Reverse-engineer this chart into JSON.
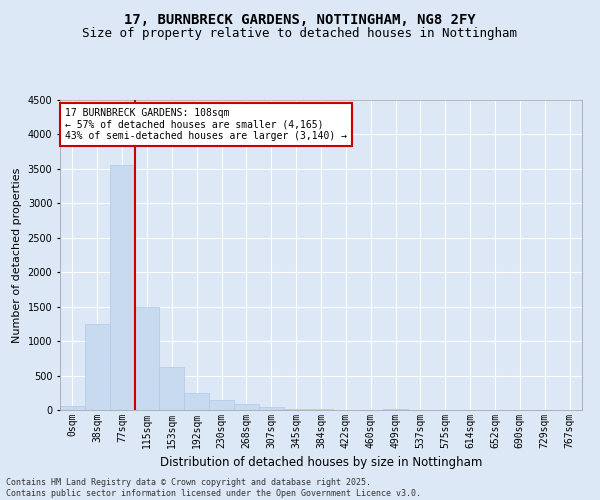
{
  "title1": "17, BURNBRECK GARDENS, NOTTINGHAM, NG8 2FY",
  "title2": "Size of property relative to detached houses in Nottingham",
  "xlabel": "Distribution of detached houses by size in Nottingham",
  "ylabel": "Number of detached properties",
  "bar_color": "#c8daf0",
  "bar_edge_color": "#b0c8e8",
  "bin_labels": [
    "0sqm",
    "38sqm",
    "77sqm",
    "115sqm",
    "153sqm",
    "192sqm",
    "230sqm",
    "268sqm",
    "307sqm",
    "345sqm",
    "384sqm",
    "422sqm",
    "460sqm",
    "499sqm",
    "537sqm",
    "575sqm",
    "614sqm",
    "652sqm",
    "690sqm",
    "729sqm",
    "767sqm"
  ],
  "bar_values": [
    55,
    1250,
    3560,
    1490,
    620,
    240,
    145,
    90,
    50,
    20,
    8,
    5,
    2,
    15,
    0,
    0,
    0,
    0,
    0,
    0,
    0
  ],
  "ylim": [
    0,
    4500
  ],
  "yticks": [
    0,
    500,
    1000,
    1500,
    2000,
    2500,
    3000,
    3500,
    4000,
    4500
  ],
  "vline_x_index": 2.5,
  "annotation_text": "17 BURNBRECK GARDENS: 108sqm\n← 57% of detached houses are smaller (4,165)\n43% of semi-detached houses are larger (3,140) →",
  "annotation_box_color": "#ffffff",
  "annotation_box_edge_color": "#cc0000",
  "vline_color": "#cc0000",
  "footer_text": "Contains HM Land Registry data © Crown copyright and database right 2025.\nContains public sector information licensed under the Open Government Licence v3.0.",
  "bg_color": "#dce8f5",
  "grid_color": "#ffffff",
  "title1_fontsize": 10,
  "title2_fontsize": 9,
  "ylabel_fontsize": 8,
  "xlabel_fontsize": 8.5,
  "tick_fontsize": 7,
  "annotation_fontsize": 7,
  "footer_fontsize": 6
}
